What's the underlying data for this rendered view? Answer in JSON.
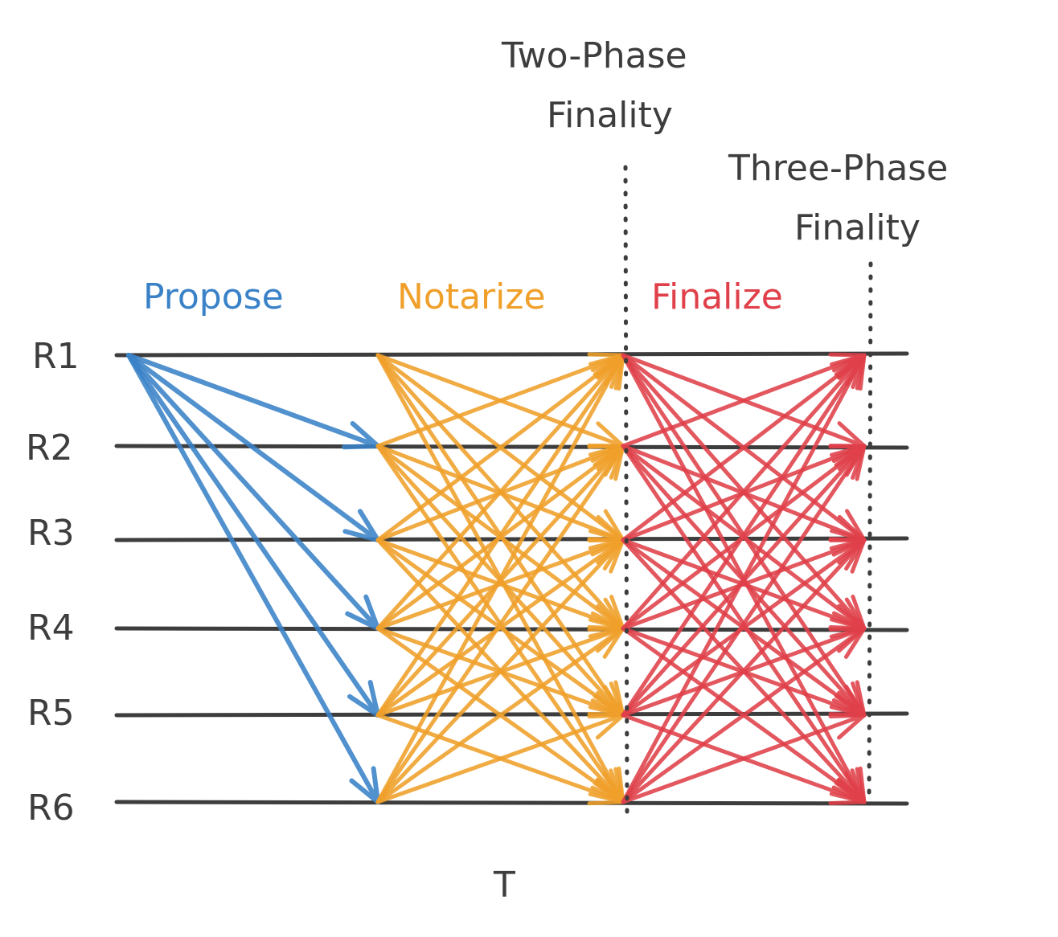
{
  "rows": [
    "R1",
    "R2",
    "R3",
    "R4",
    "R5",
    "R6"
  ],
  "phases": [
    {
      "label": "Propose",
      "color": "#3a82c8",
      "from": "R1",
      "to": "others"
    },
    {
      "label": "Notarize",
      "color": "#f0a02a",
      "from": "all",
      "to": "all"
    },
    {
      "label": "Finalize",
      "color": "#e0404a",
      "from": "all",
      "to": "all"
    }
  ],
  "markers": [
    {
      "label_line1": "Two-Phase",
      "label_line2": "Finality"
    },
    {
      "label_line1": "Three-Phase",
      "label_line2": "Finality"
    }
  ],
  "time_label": "T",
  "colors": {
    "ink": "#3d3d3d"
  }
}
